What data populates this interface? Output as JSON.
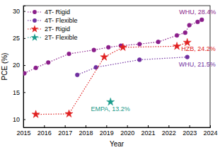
{
  "chart_data": {
    "type": "line",
    "x_label": "Year",
    "y_label": "PCE (%)",
    "xlim": [
      2015,
      2024
    ],
    "xticks": [
      2015,
      2016,
      2017,
      2018,
      2019,
      2020,
      2021,
      2022,
      2023,
      2024
    ],
    "ylim": [
      8.5,
      31
    ],
    "yticks": [
      10,
      15,
      20,
      25,
      30
    ],
    "grid": false,
    "legend": "upper left",
    "series": [
      {
        "name": "4T- Rigid",
        "color": "#8a1e8a",
        "marker": "circle",
        "line_style": "dotted",
        "x": [
          2015.05,
          2015.6,
          2016.2,
          2017.2,
          2018.4,
          2019.1,
          2019.7,
          2020.6,
          2021.5,
          2022.4,
          2022.8,
          2023.0,
          2023.4,
          2023.6
        ],
        "values": [
          18.5,
          19.5,
          20.5,
          22.1,
          22.8,
          23.3,
          23.6,
          23.9,
          24.3,
          25.5,
          26.0,
          27.4,
          28.0,
          28.4
        ]
      },
      {
        "name": "4T- Flexible",
        "color": "#7030a0",
        "marker": "circle",
        "line_style": "dotted",
        "x": [
          2017.6,
          2018.5,
          2020.6,
          2022.9
        ],
        "values": [
          18.2,
          19.6,
          21.0,
          21.5
        ]
      },
      {
        "name": "2T- Rigid",
        "color": "#e02020",
        "marker": "star",
        "line_style": "dotted",
        "x": [
          2015.6,
          2017.2,
          2018.9,
          2019.8,
          2022.4,
          2022.9
        ],
        "values": [
          10.9,
          11.0,
          21.5,
          23.3,
          23.5,
          24.2
        ]
      },
      {
        "name": "2T- Flexible",
        "color": "#1a9a8a",
        "marker": "star",
        "line_style": "dotted",
        "x": [
          2019.2
        ],
        "values": [
          13.2
        ]
      }
    ],
    "annotations": [
      {
        "text": "WHU, 28.4%",
        "x": 2023.6,
        "y": 28.4,
        "color": "#8a1e8a"
      },
      {
        "text": "WHU, 21.5%",
        "x": 2022.9,
        "y": 21.5,
        "color": "#7030a0"
      },
      {
        "text": "HZB, 24.2%",
        "x": 2022.9,
        "y": 24.2,
        "color": "#e02020"
      },
      {
        "text": "EMPA, 13.2%",
        "x": 2019.2,
        "y": 13.2,
        "color": "#1a9a8a"
      }
    ]
  }
}
